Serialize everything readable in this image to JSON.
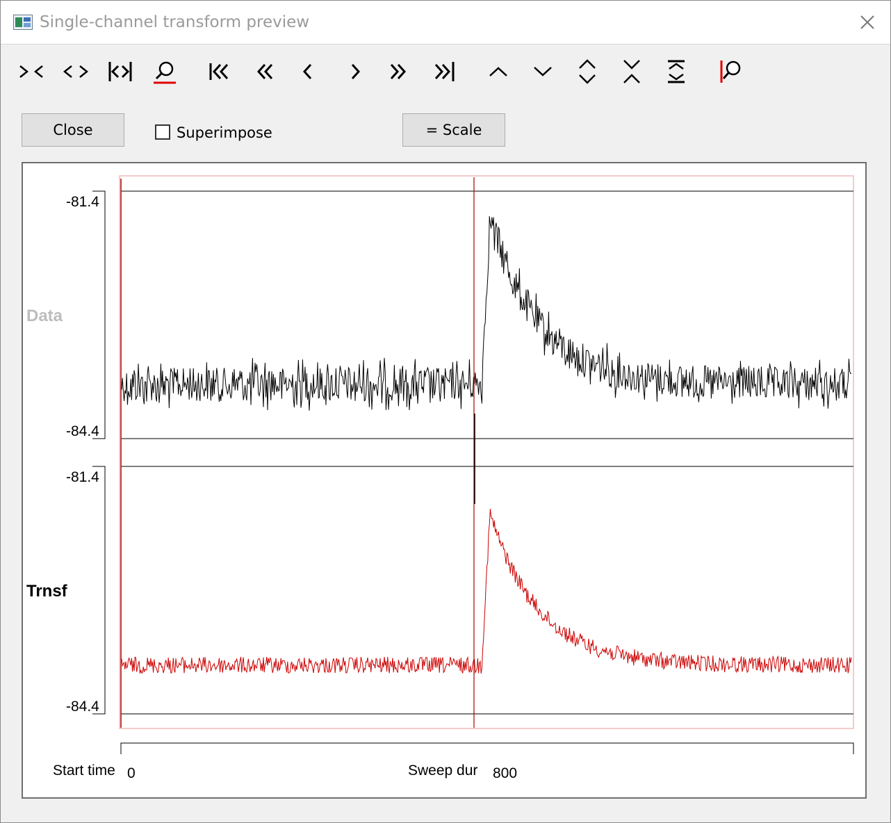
{
  "window": {
    "title": "Single-channel transform preview"
  },
  "toolbar": {
    "buttons": [
      {
        "name": "zoom-in-x-icon"
      },
      {
        "name": "zoom-out-x-icon"
      },
      {
        "name": "show-all-x-icon"
      },
      {
        "name": "magnify-icon"
      },
      {
        "name": "first-sweep-icon"
      },
      {
        "name": "page-back-icon"
      },
      {
        "name": "step-back-icon"
      },
      {
        "name": "step-forward-icon"
      },
      {
        "name": "page-forward-icon"
      },
      {
        "name": "last-sweep-icon"
      },
      {
        "name": "shift-up-icon"
      },
      {
        "name": "shift-down-icon"
      },
      {
        "name": "expand-y-icon"
      },
      {
        "name": "compress-y-icon"
      },
      {
        "name": "fit-y-icon"
      },
      {
        "name": "zoom-region-icon"
      }
    ]
  },
  "controls": {
    "close_label": "Close",
    "superimpose_label": "Superimpose",
    "superimpose_checked": false,
    "scale_label": "= Scale"
  },
  "plot": {
    "channels": [
      {
        "name": "Data",
        "y_top": "-81.4",
        "y_bottom": "-84.4",
        "color": "#000000",
        "label_color": "#bdbdbd"
      },
      {
        "name": "Trnsf",
        "y_top": "-81.4",
        "y_bottom": "-84.4",
        "color": "#cc0000",
        "label_color": "#000000"
      }
    ],
    "cursor_color": "#aa0000",
    "frame_color": "#f4b8b8"
  },
  "footer": {
    "start_time_label": "Start time",
    "start_time_value": "0",
    "sweep_dur_label": "Sweep dur",
    "sweep_dur_value": "800"
  }
}
